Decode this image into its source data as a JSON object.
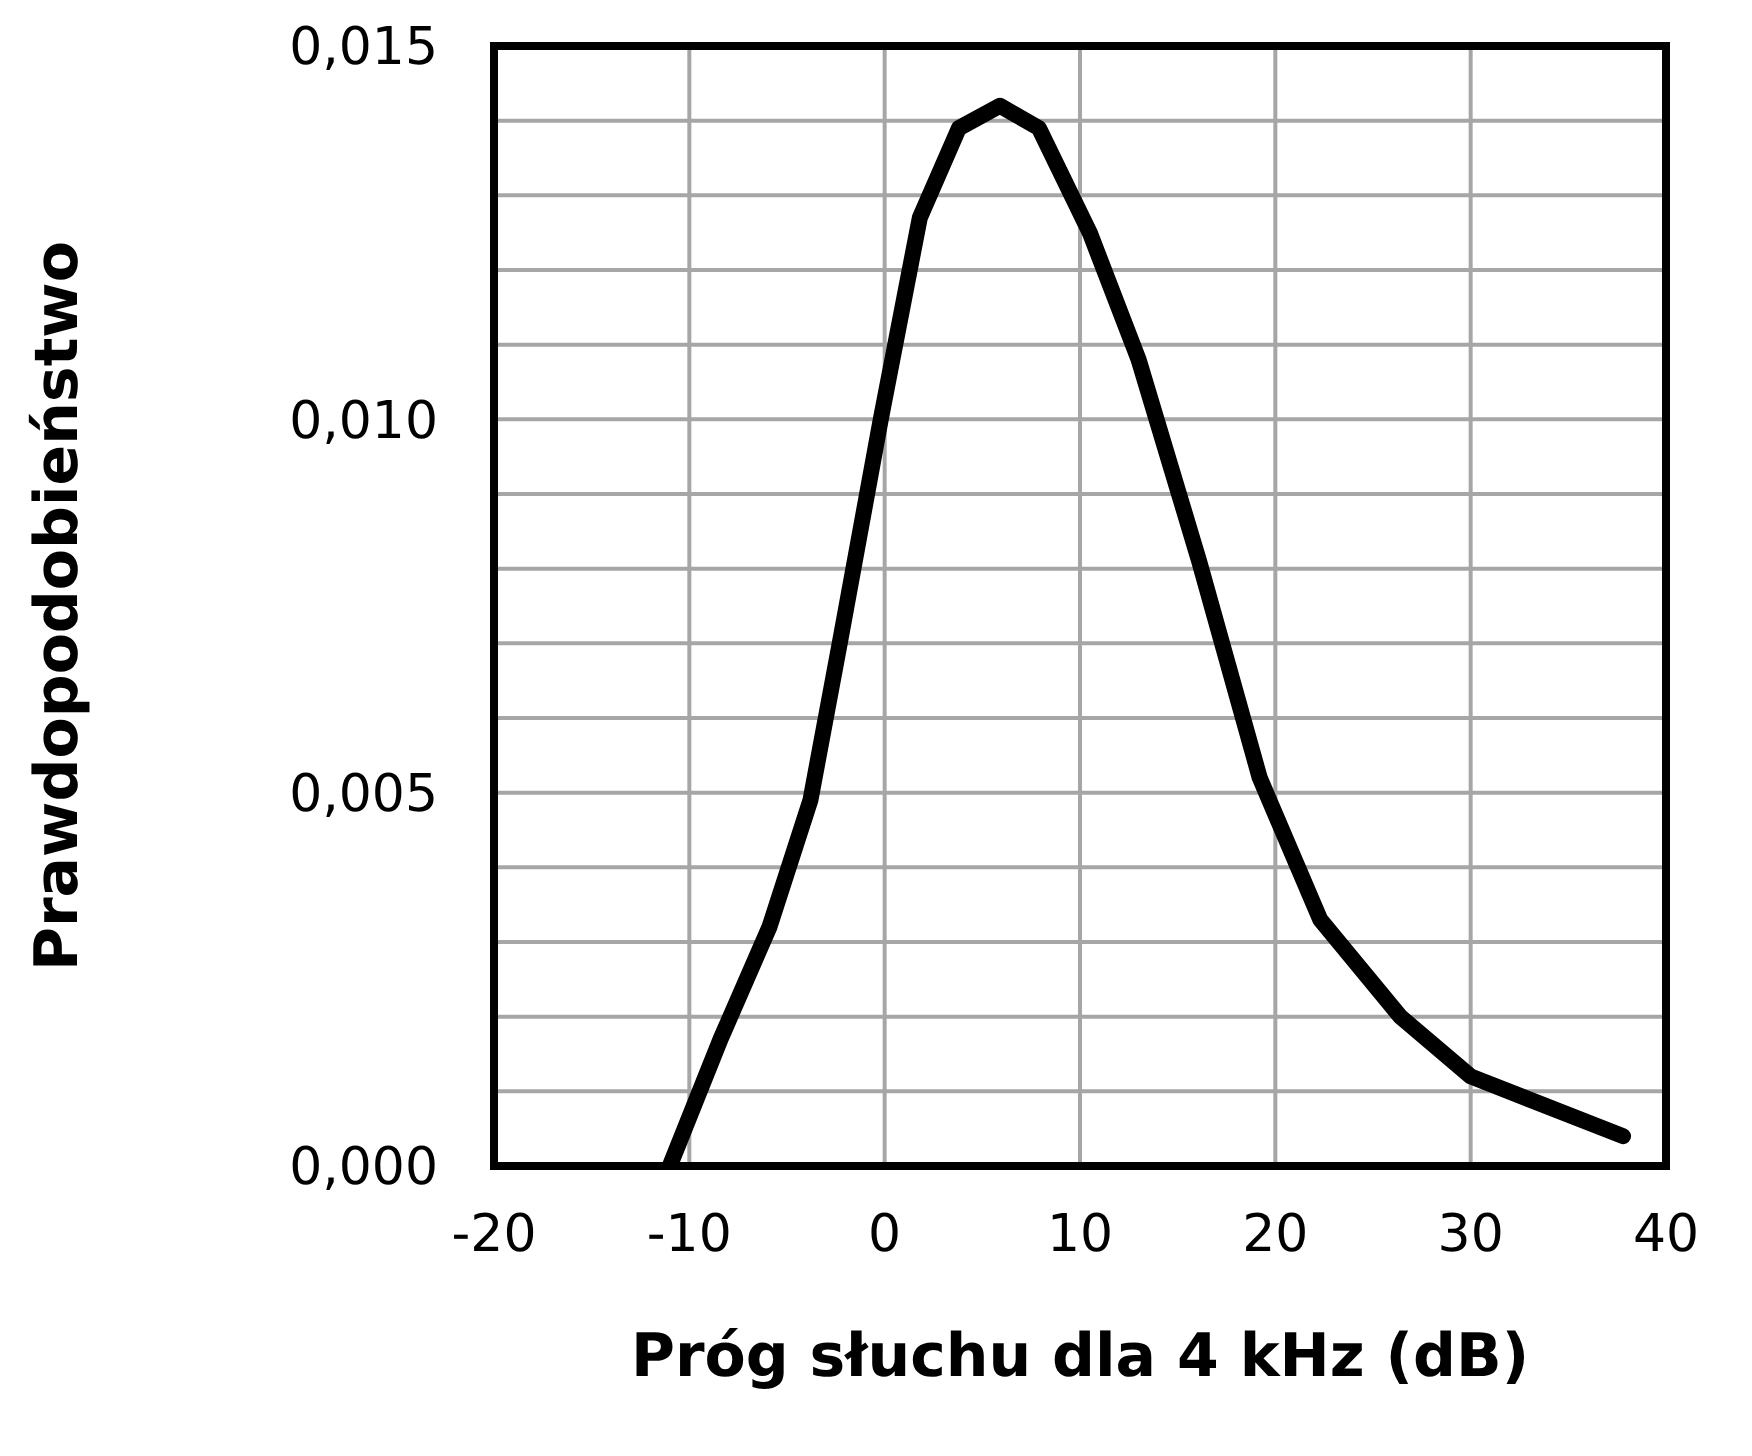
{
  "chart_data": {
    "type": "line",
    "xlabel": "Próg słuchu dla 4 kHz (dB)",
    "ylabel": "Prawdopodobieństwo",
    "x": [
      -11,
      -8.4,
      -5.9,
      -3.8,
      -2.3,
      -0.2,
      1.8,
      3.8,
      5.9,
      7.9,
      10.5,
      13,
      16.1,
      19.2,
      22.3,
      26.4,
      30,
      37.8
    ],
    "series": [
      {
        "color": "#000000",
        "values": [
          0,
          0.0017,
          0.0032,
          0.0049,
          0.007,
          0.01,
          0.0127,
          0.0139,
          0.0142,
          0.0139,
          0.0125,
          0.0108,
          0.0081,
          0.0052,
          0.0033,
          0.002,
          0.0012,
          0.0004
        ]
      }
    ],
    "xlim": [
      -20,
      40
    ],
    "xticks": [
      -20,
      -10,
      0,
      10,
      20,
      30,
      40
    ],
    "ylim": [
      0,
      0.015
    ],
    "yticks": [
      {
        "value": 0,
        "label": "0,000"
      },
      {
        "value": 0.001,
        "label": null
      },
      {
        "value": 0.002,
        "label": null
      },
      {
        "value": 0.003,
        "label": null
      },
      {
        "value": 0.004,
        "label": null
      },
      {
        "value": 0.005,
        "label": "0,005"
      },
      {
        "value": 0.006,
        "label": null
      },
      {
        "value": 0.007,
        "label": null
      },
      {
        "value": 0.008,
        "label": null
      },
      {
        "value": 0.009,
        "label": null
      },
      {
        "value": 0.01,
        "label": "0,010"
      },
      {
        "value": 0.011,
        "label": null
      },
      {
        "value": 0.012,
        "label": null
      },
      {
        "value": 0.013,
        "label": null
      },
      {
        "value": 0.014,
        "label": null
      },
      {
        "value": 0.015,
        "label": "0,015"
      }
    ],
    "grid": true,
    "marker": "none",
    "line_style": "solid"
  }
}
